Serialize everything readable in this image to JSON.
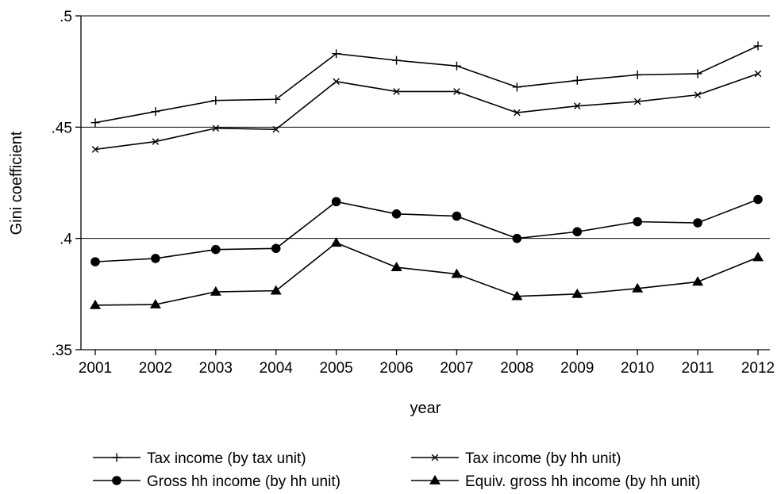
{
  "chart_data": {
    "type": "line",
    "title": "",
    "xlabel": "year",
    "ylabel": "Gini coefficient",
    "x": [
      2001,
      2002,
      2003,
      2004,
      2005,
      2006,
      2007,
      2008,
      2009,
      2010,
      2011,
      2012
    ],
    "x_tick_labels": [
      "2001",
      "2002",
      "2003",
      "2004",
      "2005",
      "2006",
      "2007",
      "2008",
      "2009",
      "2010",
      "2011",
      "2012"
    ],
    "ylim": [
      0.35,
      0.5
    ],
    "y_ticks": [
      0.35,
      0.4,
      0.45,
      0.5
    ],
    "y_tick_labels": [
      ".35",
      ".4",
      ".45",
      ".5"
    ],
    "grid": "horizontal",
    "legend_position": "bottom",
    "series": [
      {
        "name": "Tax income (by tax unit)",
        "marker": "plus",
        "values": [
          0.452,
          0.457,
          0.462,
          0.4625,
          0.483,
          0.48,
          0.4775,
          0.468,
          0.471,
          0.4735,
          0.474,
          0.4865
        ]
      },
      {
        "name": "Tax income (by hh unit)",
        "marker": "x",
        "values": [
          0.44,
          0.4435,
          0.4495,
          0.449,
          0.4705,
          0.466,
          0.466,
          0.4565,
          0.4595,
          0.4615,
          0.4645,
          0.474
        ]
      },
      {
        "name": "Gross hh income (by hh unit)",
        "marker": "circle",
        "values": [
          0.3895,
          0.391,
          0.395,
          0.3955,
          0.4165,
          0.411,
          0.41,
          0.4,
          0.403,
          0.4075,
          0.407,
          0.4175
        ]
      },
      {
        "name": "Equiv. gross hh income (by hh unit)",
        "marker": "triangle",
        "values": [
          0.37,
          0.3703,
          0.376,
          0.3765,
          0.398,
          0.387,
          0.384,
          0.374,
          0.375,
          0.3775,
          0.3805,
          0.3915
        ]
      }
    ]
  }
}
